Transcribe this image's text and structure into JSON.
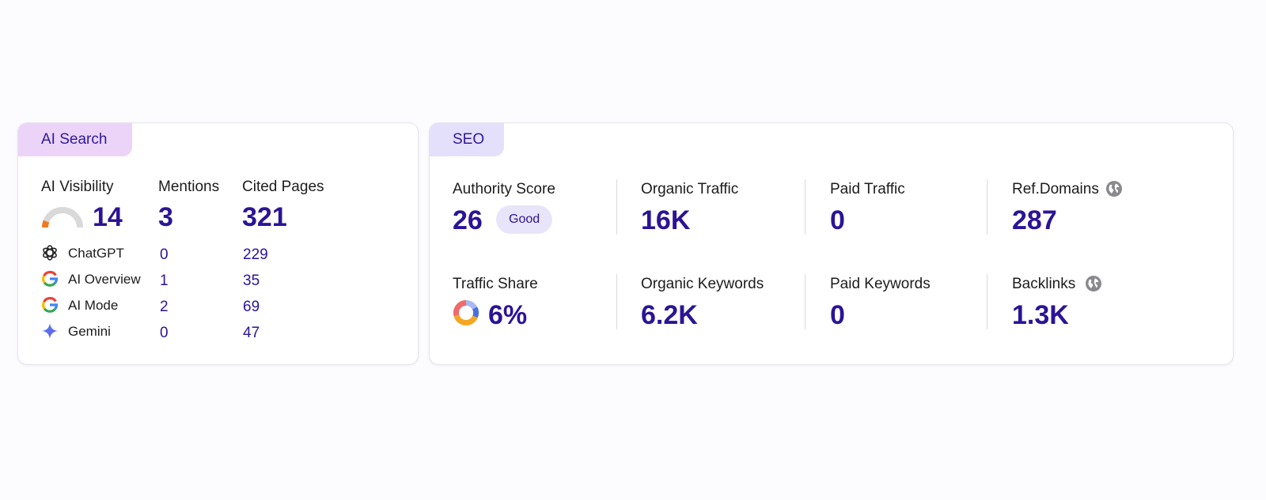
{
  "ai_search": {
    "tab_label": "AI Search",
    "columns": {
      "visibility": "AI Visibility",
      "mentions": "Mentions",
      "cited_pages": "Cited Pages"
    },
    "totals": {
      "visibility": "14",
      "mentions": "3",
      "cited_pages": "321"
    },
    "visibility_gauge_fraction": 0.14,
    "sources": [
      {
        "name": "ChatGPT",
        "icon": "chatgpt-icon",
        "mentions": "0",
        "cited_pages": "229"
      },
      {
        "name": "AI Overview",
        "icon": "google-icon",
        "mentions": "1",
        "cited_pages": "35"
      },
      {
        "name": "AI Mode",
        "icon": "google-icon",
        "mentions": "2",
        "cited_pages": "69"
      },
      {
        "name": "Gemini",
        "icon": "gemini-icon",
        "mentions": "0",
        "cited_pages": "47"
      }
    ]
  },
  "seo": {
    "tab_label": "SEO",
    "authority_score": {
      "label": "Authority Score",
      "value": "26",
      "badge": "Good"
    },
    "organic_traffic": {
      "label": "Organic Traffic",
      "value": "16K"
    },
    "paid_traffic": {
      "label": "Paid Traffic",
      "value": "0"
    },
    "ref_domains": {
      "label": "Ref.Domains",
      "value": "287",
      "icon": "globe-icon"
    },
    "traffic_share": {
      "label": "Traffic Share",
      "value": "6%",
      "icon": "donut-chart-icon"
    },
    "organic_keywords": {
      "label": "Organic Keywords",
      "value": "6.2K"
    },
    "paid_keywords": {
      "label": "Paid Keywords",
      "value": "0"
    },
    "backlinks": {
      "label": "Backlinks",
      "value": "1.3K",
      "icon": "globe-icon"
    }
  },
  "colors": {
    "accent": "#2a1496",
    "ai_tab_bg": "#ecd4f8",
    "seo_tab_bg": "#e4e0fb",
    "gauge_fill": "#f07a1f",
    "gauge_track": "#d9d9d9"
  }
}
